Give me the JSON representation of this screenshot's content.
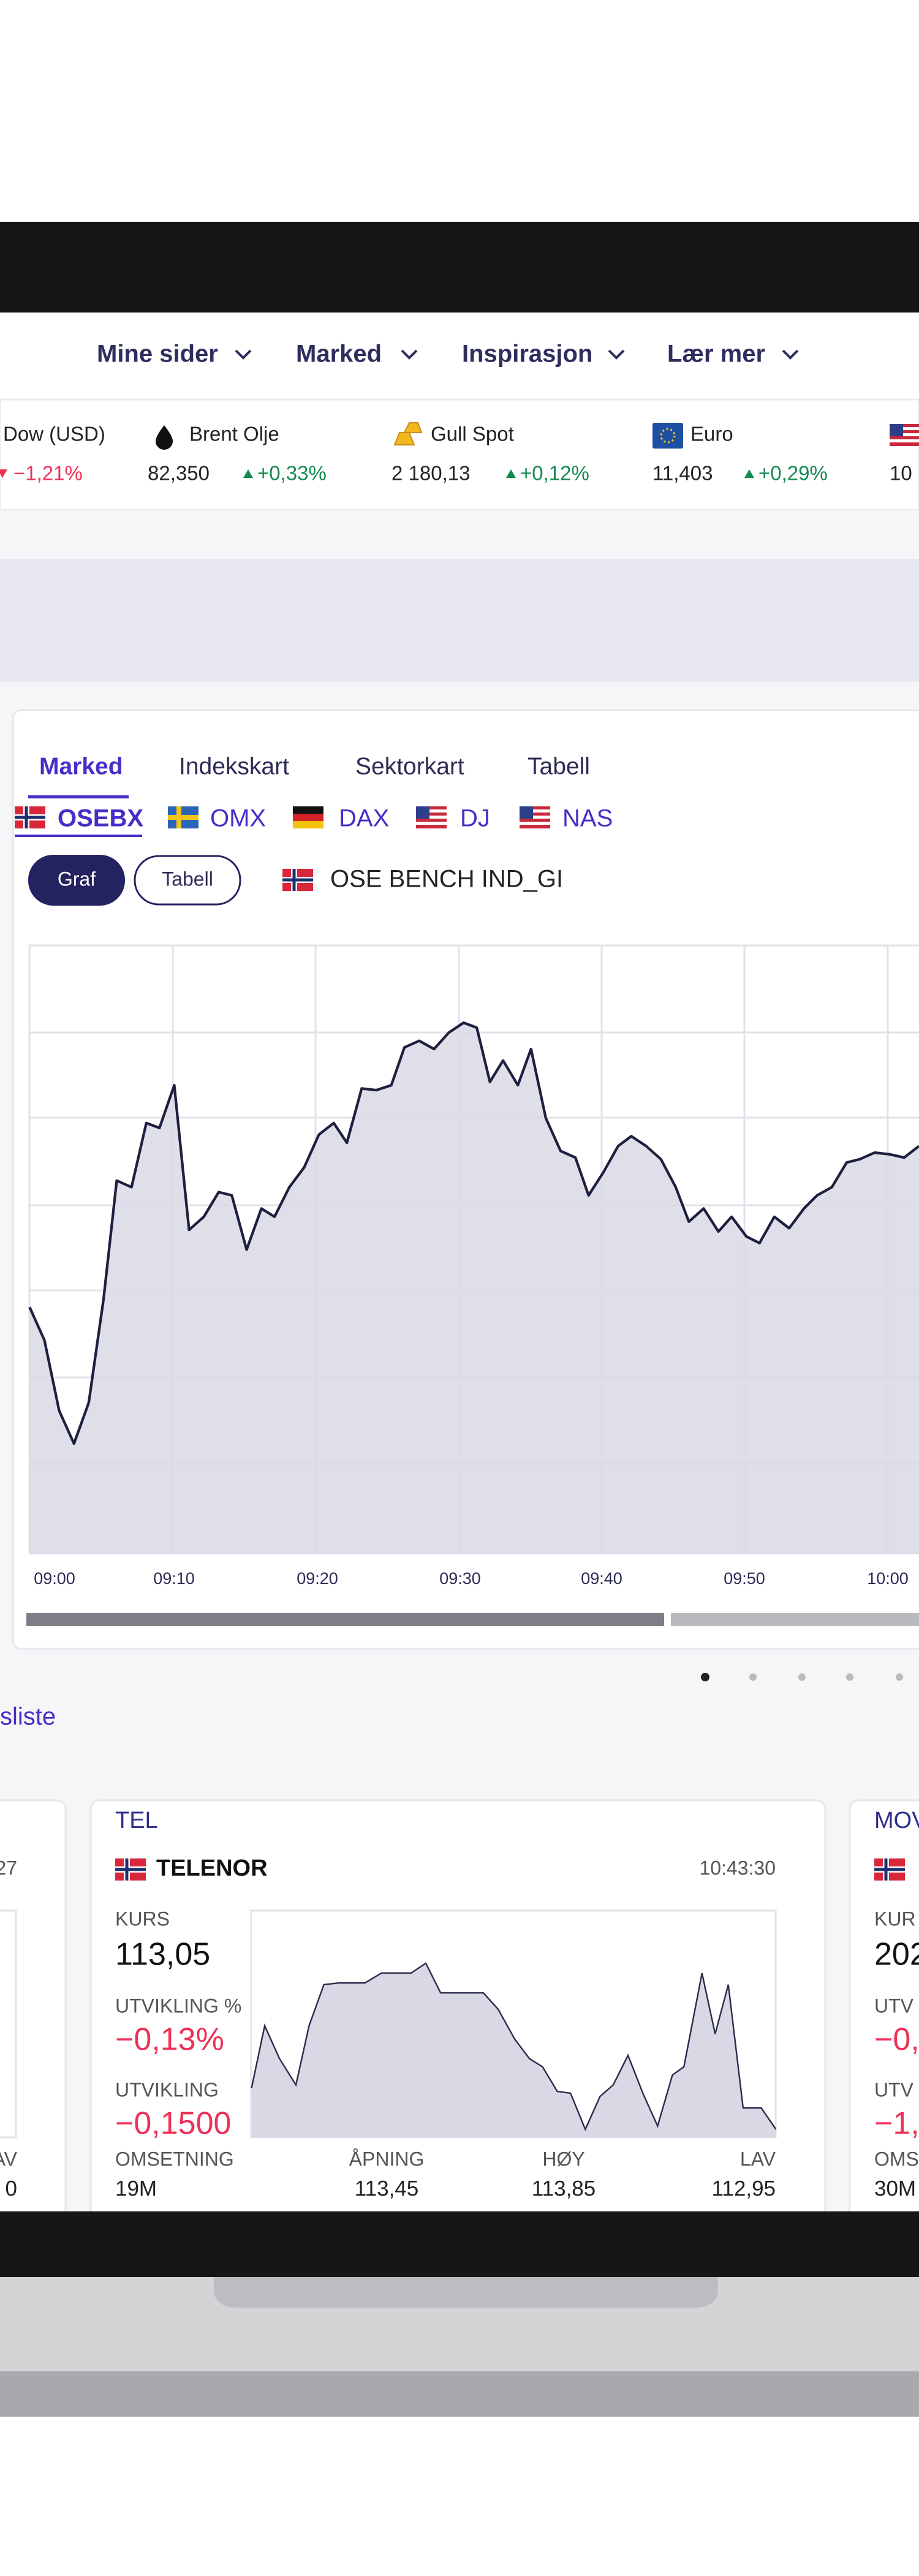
{
  "nav": {
    "items": [
      "Mine sider",
      "Marked",
      "Inspirasjon",
      "Lær mer"
    ]
  },
  "ticker": {
    "items": [
      {
        "name": "Dow (USD)",
        "change": "−1,21%"
      },
      {
        "name": "Brent Olje",
        "value": "82,350",
        "change": "+0,33%"
      },
      {
        "name": "Gull Spot",
        "value": "2 180,13",
        "change": "+0,12%"
      },
      {
        "name": "Euro",
        "value": "11,403",
        "change": "+0,29%"
      },
      {
        "value": "10"
      }
    ]
  },
  "market_card": {
    "tabs": [
      "Marked",
      "Indekskart",
      "Sektorkart",
      "Tabell"
    ],
    "indices": [
      "OSEBX",
      "OMX",
      "DAX",
      "DJ",
      "NAS"
    ],
    "buttons": [
      "Graf",
      "Tabell"
    ],
    "instrument": "OSE BENCH IND_GI",
    "x_labels": [
      "09:00",
      "09:10",
      "09:20",
      "09:30",
      "09:40",
      "09:50",
      "10:00"
    ]
  },
  "link": "sliste",
  "left_card": {
    "time": "27",
    "label": "LAV",
    "value": "0"
  },
  "telenor_card": {
    "ticker": "TEL",
    "name": "TELENOR",
    "time": "10:43:30",
    "fields": [
      {
        "label": "KURS",
        "value": "113,05"
      },
      {
        "label": "UTVIKLING %",
        "value": "−0,13%"
      },
      {
        "label": "UTVIKLING",
        "value": "−0,1500"
      },
      {
        "label": "OMSETNING",
        "value": "19M"
      },
      {
        "label": "ÅPNING",
        "value": "113,45"
      },
      {
        "label": "HØY",
        "value": "113,85"
      },
      {
        "label": "LAV",
        "value": "112,95"
      }
    ]
  },
  "right_card": {
    "ticker": "MOV",
    "fields": [
      {
        "label": "KUR",
        "value": "202"
      },
      {
        "label": "UTV",
        "value": "−0,"
      },
      {
        "label": "UTV",
        "value": "−1,"
      },
      {
        "label": "OMS",
        "value": "30M"
      }
    ]
  }
}
